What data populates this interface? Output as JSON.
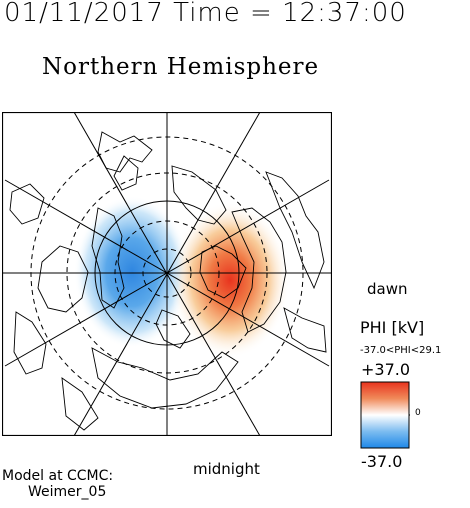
{
  "header": {
    "datetime": "01/11/2017 Time = 12:37:00"
  },
  "plot": {
    "title": "Northern Hemisphere",
    "labels": {
      "dawn": "dawn",
      "midnight": "midnight"
    }
  },
  "colorbar": {
    "title": "PHI [kV]",
    "range_text": "-37.0<PHI<29.1",
    "max_label": "+37.0",
    "min_label": "-37.0",
    "zero_label": "0",
    "colors": {
      "negative": "#3a8fe0",
      "positive": "#e8331e",
      "neutral": "#ffffff"
    }
  },
  "footer": {
    "model_line1": "Model at CCMC:",
    "model_line2": "Weimer_05"
  }
}
